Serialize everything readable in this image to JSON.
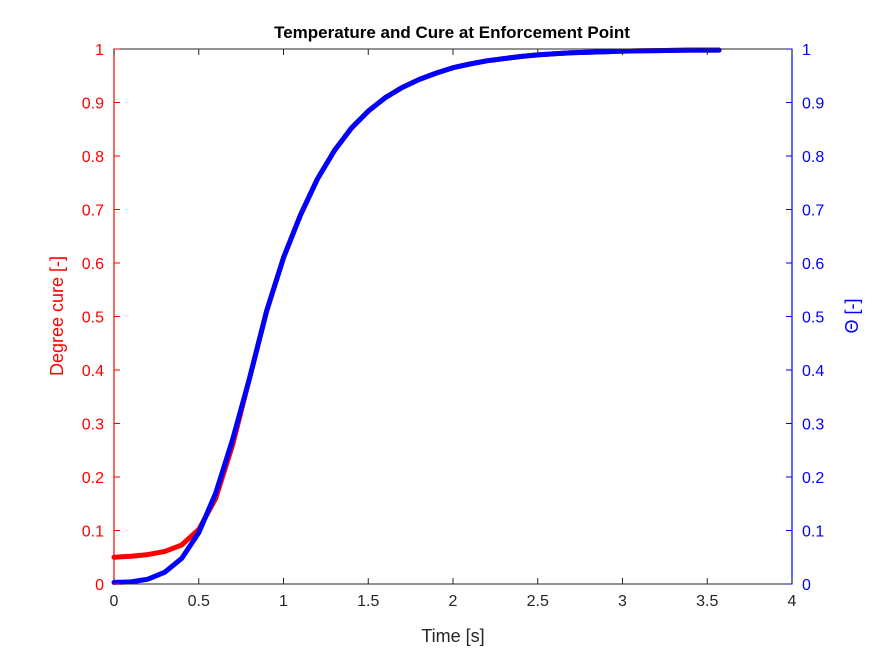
{
  "chart_data": {
    "type": "line",
    "title": "Temperature and Cure at Enforcement Point",
    "xlabel": "Time [s]",
    "ylabel_left": "Degree cure [-]",
    "ylabel_right": "Θ [-]",
    "xlim": [
      0,
      4
    ],
    "ylim_left": [
      0,
      1
    ],
    "ylim_right": [
      0,
      1
    ],
    "x_ticks": [
      "0",
      "0.5",
      "1",
      "1.5",
      "2",
      "2.5",
      "3",
      "3.5",
      "4"
    ],
    "y_ticks_left": [
      "0",
      "0.1",
      "0.2",
      "0.3",
      "0.4",
      "0.5",
      "0.6",
      "0.7",
      "0.8",
      "0.9",
      "1"
    ],
    "y_ticks_right": [
      "0",
      "0.1",
      "0.2",
      "0.3",
      "0.4",
      "0.5",
      "0.6",
      "0.7",
      "0.8",
      "0.9",
      "1"
    ],
    "grid": false,
    "colors": {
      "left_axis": "#ff0000",
      "right_axis": "#0000ff"
    },
    "series": [
      {
        "axis": "left",
        "color": "#ff0000",
        "x": [
          0,
          0.1,
          0.2,
          0.3,
          0.4,
          0.5,
          0.6,
          0.7,
          0.8,
          0.9,
          1.0,
          1.1,
          1.2,
          1.3,
          1.4,
          1.5,
          1.6,
          1.7,
          1.8,
          1.9,
          2.0,
          2.1,
          2.2,
          2.3,
          2.4,
          2.5,
          2.6,
          2.7,
          2.8,
          2.9,
          3.0,
          3.2,
          3.4,
          3.57
        ],
        "y": [
          0.05,
          0.052,
          0.055,
          0.061,
          0.073,
          0.102,
          0.16,
          0.26,
          0.385,
          0.51,
          0.61,
          0.69,
          0.757,
          0.81,
          0.852,
          0.884,
          0.909,
          0.928,
          0.943,
          0.955,
          0.965,
          0.972,
          0.978,
          0.982,
          0.986,
          0.989,
          0.991,
          0.993,
          0.994,
          0.995,
          0.996,
          0.997,
          0.998,
          0.998
        ]
      },
      {
        "axis": "right",
        "color": "#0000ff",
        "x": [
          0,
          0.1,
          0.2,
          0.3,
          0.4,
          0.5,
          0.6,
          0.7,
          0.8,
          0.9,
          1.0,
          1.1,
          1.2,
          1.3,
          1.4,
          1.5,
          1.6,
          1.7,
          1.8,
          1.9,
          2.0,
          2.1,
          2.2,
          2.3,
          2.4,
          2.5,
          2.6,
          2.7,
          2.8,
          2.9,
          3.0,
          3.2,
          3.4,
          3.57
        ],
        "y": [
          0.003,
          0.004,
          0.009,
          0.022,
          0.048,
          0.096,
          0.17,
          0.27,
          0.385,
          0.51,
          0.61,
          0.69,
          0.757,
          0.81,
          0.852,
          0.884,
          0.909,
          0.928,
          0.943,
          0.955,
          0.965,
          0.972,
          0.978,
          0.982,
          0.986,
          0.989,
          0.991,
          0.993,
          0.994,
          0.995,
          0.996,
          0.997,
          0.998,
          0.998
        ]
      }
    ]
  }
}
